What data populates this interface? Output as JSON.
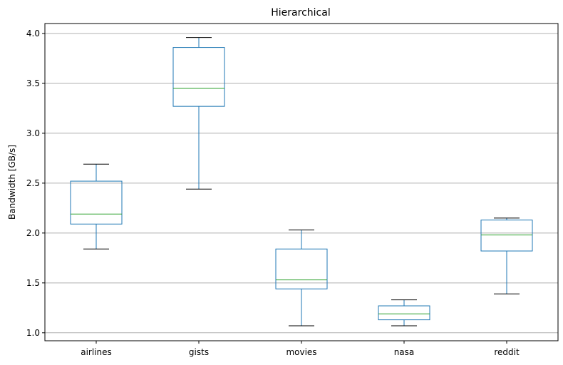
{
  "chart_data": {
    "type": "box",
    "title": "Hierarchical",
    "xlabel": "",
    "ylabel": "Bandwidth [GB/s]",
    "ylim": [
      0.92,
      4.1
    ],
    "yticks": [
      "1.0",
      "1.5",
      "2.0",
      "2.5",
      "3.0",
      "3.5",
      "4.0"
    ],
    "grid": "horizontal",
    "categories": [
      "airlines",
      "gists",
      "movies",
      "nasa",
      "reddit"
    ],
    "boxes": [
      {
        "whisker_low": 1.84,
        "q1": 2.09,
        "median": 2.19,
        "q3": 2.52,
        "whisker_high": 2.69
      },
      {
        "whisker_low": 2.44,
        "q1": 3.27,
        "median": 3.45,
        "q3": 3.86,
        "whisker_high": 3.96
      },
      {
        "whisker_low": 1.07,
        "q1": 1.44,
        "median": 1.53,
        "q3": 1.84,
        "whisker_high": 2.03
      },
      {
        "whisker_low": 1.07,
        "q1": 1.13,
        "median": 1.19,
        "q3": 1.27,
        "whisker_high": 1.33
      },
      {
        "whisker_low": 1.39,
        "q1": 1.82,
        "median": 1.98,
        "q3": 2.13,
        "whisker_high": 2.15
      }
    ],
    "colors": {
      "box": "#1f77b4",
      "median": "#2ca02c",
      "whisker_cap": "#000000",
      "grid": "#b0b0b0",
      "axis": "#000000"
    }
  }
}
